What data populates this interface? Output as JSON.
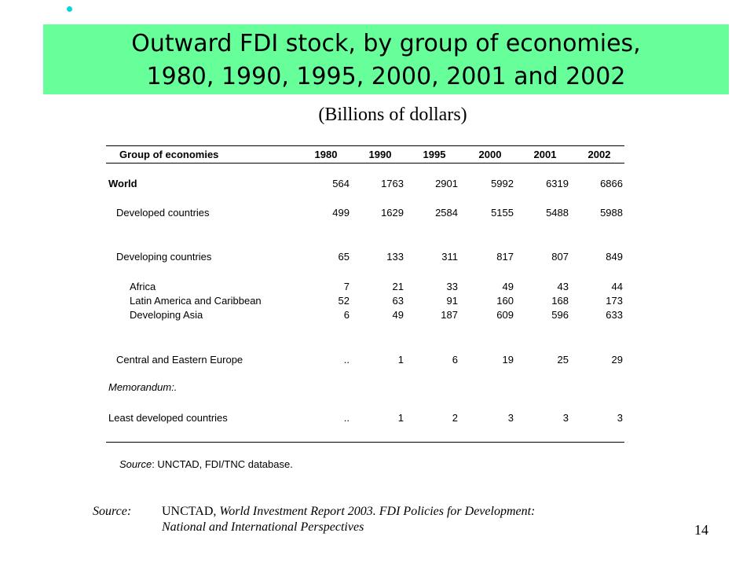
{
  "title": {
    "line1": "Outward FDI stock, by group of economies,",
    "line2": "1980, 1990, 1995, 2000, 2001 and 2002"
  },
  "subtitle": "(Billions of dollars)",
  "table": {
    "header": [
      "Group of economies",
      "1980",
      "1990",
      "1995",
      "2000",
      "2001",
      "2002"
    ],
    "rows": [
      {
        "label": "World",
        "values": [
          "564",
          "1763",
          "2901",
          "5992",
          "6319",
          "6866"
        ]
      },
      {
        "label": "Developed countries",
        "values": [
          "499",
          "1629",
          "2584",
          "5155",
          "5488",
          "5988"
        ]
      },
      {
        "label": "Developing countries",
        "values": [
          "65",
          "133",
          "311",
          "817",
          "807",
          "849"
        ]
      },
      {
        "label": "Africa",
        "values": [
          "7",
          "21",
          "33",
          "49",
          "43",
          "44"
        ]
      },
      {
        "label": "Latin America and Caribbean",
        "values": [
          "52",
          "63",
          "91",
          "160",
          "168",
          "173"
        ]
      },
      {
        "label": "Developing Asia",
        "values": [
          "6",
          "49",
          "187",
          "609",
          "596",
          "633"
        ]
      },
      {
        "label": "Central and Eastern Europe",
        "values": [
          "..",
          "1",
          "6",
          "19",
          "25",
          "29"
        ]
      },
      {
        "label": "Memorandum:.",
        "values": [
          "",
          "",
          "",
          "",
          "",
          ""
        ]
      },
      {
        "label": "Least developed countries",
        "values": [
          "..",
          "1",
          "2",
          "3",
          "3",
          "3"
        ]
      }
    ],
    "source_label": "Source",
    "source_text": ":  UNCTAD, FDI/TNC database."
  },
  "footer": {
    "source_label": "Source:",
    "org": "UNCTAD",
    "line1_rest": ", World Investment Report 2003.  FDI Policies for Development:",
    "line2": "National and International Perspectives"
  },
  "page_number": "14"
}
